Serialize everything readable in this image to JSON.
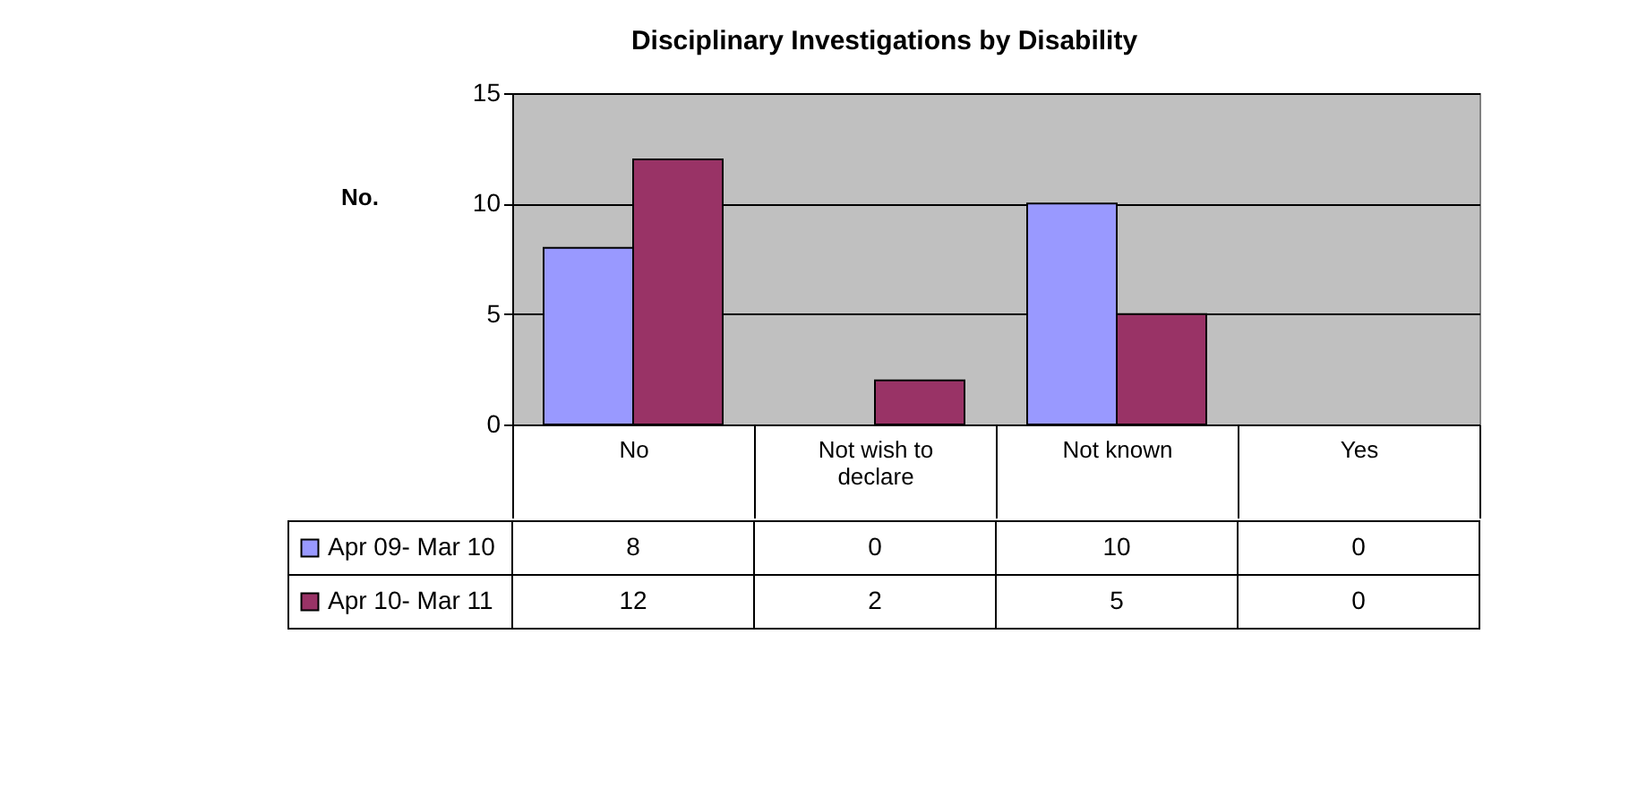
{
  "chart_data": {
    "type": "bar",
    "title": "Disciplinary Investigations by Disability",
    "ylabel": "No.",
    "categories": [
      "No",
      "Not wish to declare",
      "Not known",
      "Yes"
    ],
    "series": [
      {
        "name": "Apr 09- Mar 10",
        "color": "#9999ff",
        "values": [
          8,
          0,
          10,
          0
        ]
      },
      {
        "name": "Apr 10- Mar 11",
        "color": "#993366",
        "values": [
          12,
          2,
          5,
          0
        ]
      }
    ],
    "ylim": [
      0,
      15
    ],
    "yticks": [
      0,
      5,
      10,
      15
    ],
    "grid": "y",
    "legend": "bottom left",
    "data_labels": true
  }
}
